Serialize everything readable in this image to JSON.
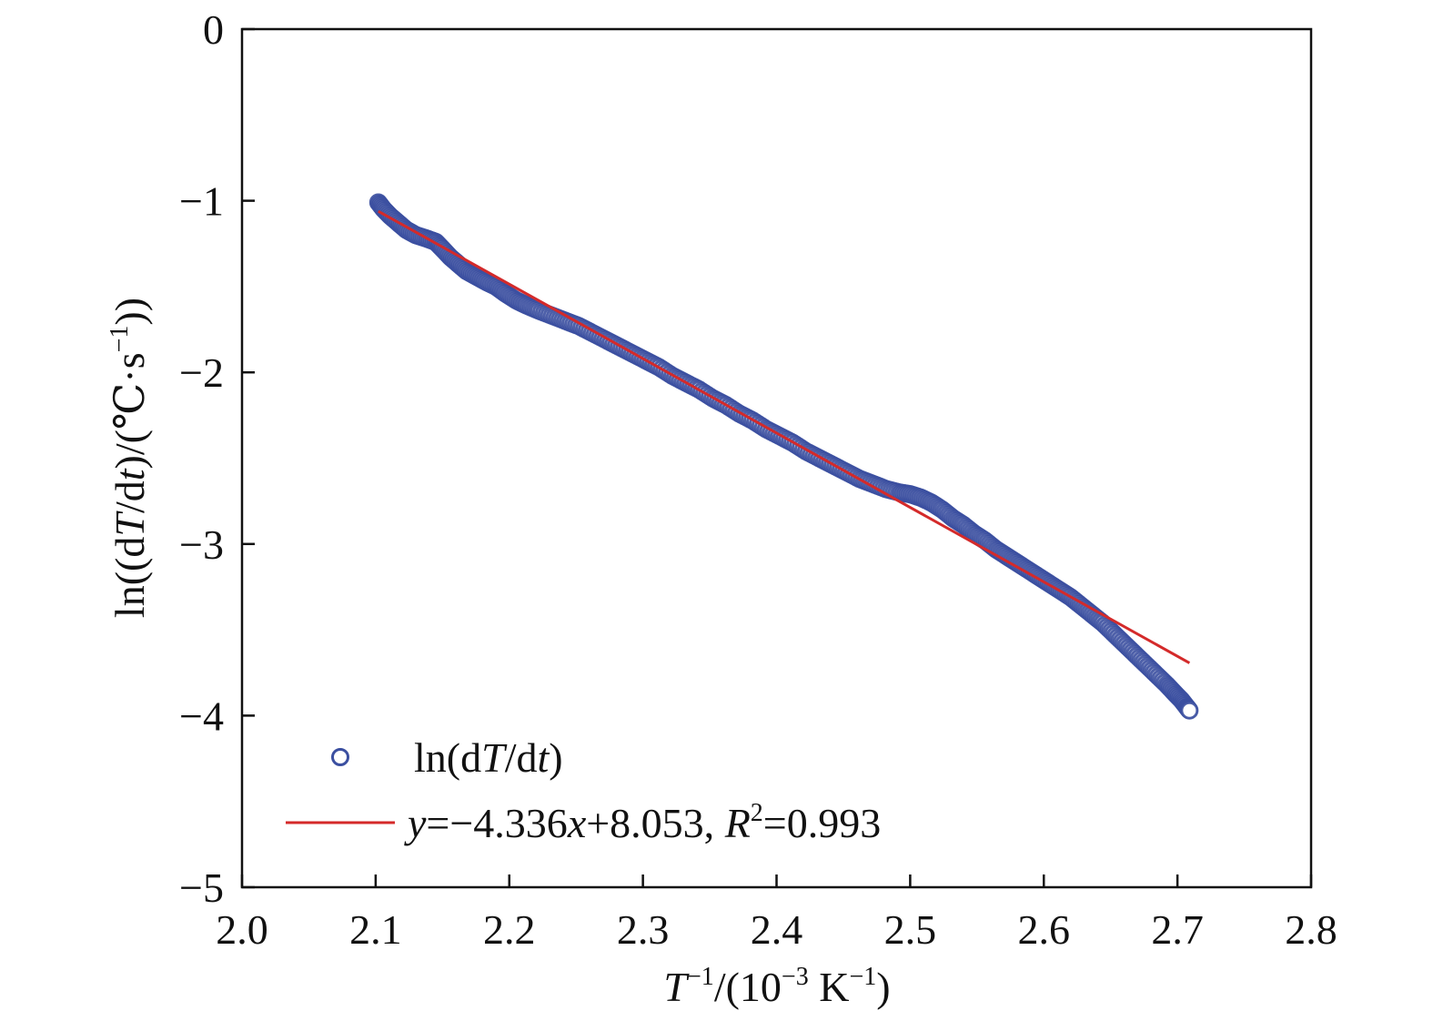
{
  "chart_data": {
    "type": "scatter",
    "xlabel": {
      "base": "T",
      "sup1": "−1",
      "mid": "/(10",
      "sup2": "−3",
      "unit": " K",
      "sup3": "−1",
      "end": ")"
    },
    "ylabel": {
      "p1": "ln((d",
      "italic1": "T",
      "p2": "/d",
      "italic2": "t",
      "p3": ")/(℃·s",
      "sup": "−1",
      "p4": "))"
    },
    "xlim": [
      2.0,
      2.8
    ],
    "ylim": [
      -5,
      0
    ],
    "x_ticks": [
      "2.0",
      "2.1",
      "2.2",
      "2.3",
      "2.4",
      "2.5",
      "2.6",
      "2.7",
      "2.8"
    ],
    "y_ticks": [
      "0",
      "−1",
      "−2",
      "−3",
      "−4",
      "−5"
    ],
    "grid": false,
    "legend_position": "bottom-left",
    "series": [
      {
        "name": "ln(dT/dt)",
        "legend": {
          "p1": "ln(d",
          "italic1": "T",
          "p2": "/d",
          "italic2": "t",
          "p3": ")"
        },
        "marker": "open-circle",
        "color": "#3b4fa0",
        "points": [
          [
            2.102,
            -1.01
          ],
          [
            2.106,
            -1.05
          ],
          [
            2.111,
            -1.09
          ],
          [
            2.117,
            -1.13
          ],
          [
            2.123,
            -1.17
          ],
          [
            2.13,
            -1.2
          ],
          [
            2.138,
            -1.22
          ],
          [
            2.145,
            -1.24
          ],
          [
            2.15,
            -1.28
          ],
          [
            2.156,
            -1.33
          ],
          [
            2.162,
            -1.37
          ],
          [
            2.168,
            -1.41
          ],
          [
            2.175,
            -1.44
          ],
          [
            2.182,
            -1.47
          ],
          [
            2.19,
            -1.5
          ],
          [
            2.197,
            -1.54
          ],
          [
            2.205,
            -1.58
          ],
          [
            2.213,
            -1.61
          ],
          [
            2.222,
            -1.64
          ],
          [
            2.232,
            -1.67
          ],
          [
            2.242,
            -1.7
          ],
          [
            2.252,
            -1.73
          ],
          [
            2.262,
            -1.77
          ],
          [
            2.272,
            -1.81
          ],
          [
            2.282,
            -1.85
          ],
          [
            2.292,
            -1.89
          ],
          [
            2.302,
            -1.93
          ],
          [
            2.312,
            -1.97
          ],
          [
            2.322,
            -2.02
          ],
          [
            2.332,
            -2.06
          ],
          [
            2.342,
            -2.1
          ],
          [
            2.352,
            -2.15
          ],
          [
            2.362,
            -2.19
          ],
          [
            2.372,
            -2.24
          ],
          [
            2.382,
            -2.28
          ],
          [
            2.392,
            -2.33
          ],
          [
            2.402,
            -2.37
          ],
          [
            2.412,
            -2.41
          ],
          [
            2.422,
            -2.46
          ],
          [
            2.432,
            -2.5
          ],
          [
            2.442,
            -2.54
          ],
          [
            2.452,
            -2.58
          ],
          [
            2.462,
            -2.62
          ],
          [
            2.472,
            -2.65
          ],
          [
            2.482,
            -2.68
          ],
          [
            2.492,
            -2.7
          ],
          [
            2.5,
            -2.71
          ],
          [
            2.508,
            -2.73
          ],
          [
            2.516,
            -2.76
          ],
          [
            2.524,
            -2.8
          ],
          [
            2.532,
            -2.85
          ],
          [
            2.54,
            -2.89
          ],
          [
            2.548,
            -2.94
          ],
          [
            2.556,
            -2.98
          ],
          [
            2.564,
            -3.03
          ],
          [
            2.572,
            -3.07
          ],
          [
            2.58,
            -3.11
          ],
          [
            2.588,
            -3.15
          ],
          [
            2.596,
            -3.19
          ],
          [
            2.604,
            -3.23
          ],
          [
            2.612,
            -3.27
          ],
          [
            2.62,
            -3.31
          ],
          [
            2.628,
            -3.36
          ],
          [
            2.636,
            -3.41
          ],
          [
            2.644,
            -3.46
          ],
          [
            2.652,
            -3.52
          ],
          [
            2.66,
            -3.58
          ],
          [
            2.668,
            -3.64
          ],
          [
            2.676,
            -3.7
          ],
          [
            2.684,
            -3.76
          ],
          [
            2.692,
            -3.82
          ],
          [
            2.698,
            -3.87
          ],
          [
            2.703,
            -3.91
          ],
          [
            2.707,
            -3.95
          ],
          [
            2.709,
            -3.97
          ]
        ]
      },
      {
        "name": "fit",
        "legend": {
          "italic1": "y",
          "p1": "=−4.336",
          "italic2": "x",
          "p2": "+8.053, ",
          "italic3": "R",
          "sup": "2",
          "p3": "=0.993"
        },
        "type": "line",
        "color": "#d42a2a",
        "slope": -4.336,
        "intercept": 8.053,
        "x_range": [
          2.102,
          2.709
        ]
      }
    ]
  }
}
